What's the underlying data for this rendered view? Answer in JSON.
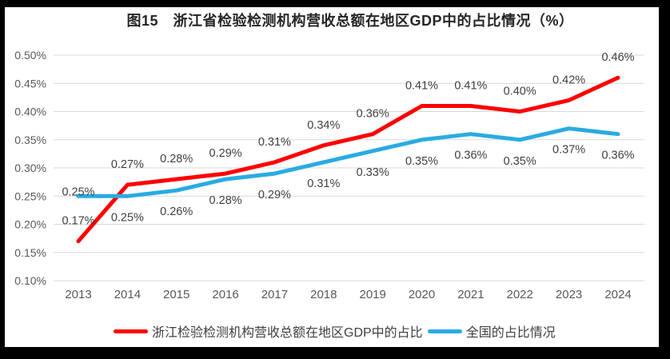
{
  "title": "图15　浙江省检验检测机构营收总额在地区GDP中的占比情况（%）",
  "colors": {
    "frame": "#000000",
    "background": "#ffffff",
    "gridline": "#d9d9d9",
    "axis_text": "#595959",
    "label_text": "#404040",
    "title_text": "#262626"
  },
  "chart_data": {
    "type": "line",
    "title": "图15　浙江省检验检测机构营收总额在地区GDP中的占比情况（%）",
    "x": [
      "2013",
      "2014",
      "2015",
      "2016",
      "2017",
      "2018",
      "2019",
      "2020",
      "2021",
      "2022",
      "2023",
      "2024"
    ],
    "y_ticks": [
      "0.50%",
      "0.45%",
      "0.40%",
      "0.35%",
      "0.30%",
      "0.25%",
      "0.20%",
      "0.15%",
      "0.10%"
    ],
    "ylim": [
      0.1,
      0.5
    ],
    "grid": "horizontal",
    "legend_position": "bottom",
    "series": [
      {
        "name": "浙江检验检测机构营收总额在地区GDP中的占比",
        "color": "#fe0000",
        "values": [
          0.17,
          0.27,
          0.28,
          0.29,
          0.31,
          0.34,
          0.36,
          0.41,
          0.41,
          0.4,
          0.42,
          0.46
        ],
        "labels": [
          "0.17%",
          "0.27%",
          "0.28%",
          "0.29%",
          "0.31%",
          "0.34%",
          "0.36%",
          "0.41%",
          "0.41%",
          "0.40%",
          "0.42%",
          "0.46%"
        ],
        "label_position": "above"
      },
      {
        "name": "全国的占比情况",
        "color": "#29abe2",
        "values": [
          0.25,
          0.25,
          0.26,
          0.28,
          0.29,
          0.31,
          0.33,
          0.35,
          0.36,
          0.35,
          0.37,
          0.36
        ],
        "labels": [
          "0.25%",
          "0.25%",
          "0.26%",
          "0.28%",
          "0.29%",
          "0.31%",
          "0.33%",
          "0.35%",
          "0.36%",
          "0.35%",
          "0.37%",
          "0.36%"
        ],
        "label_position": "below",
        "first_label_position": "above"
      }
    ]
  }
}
